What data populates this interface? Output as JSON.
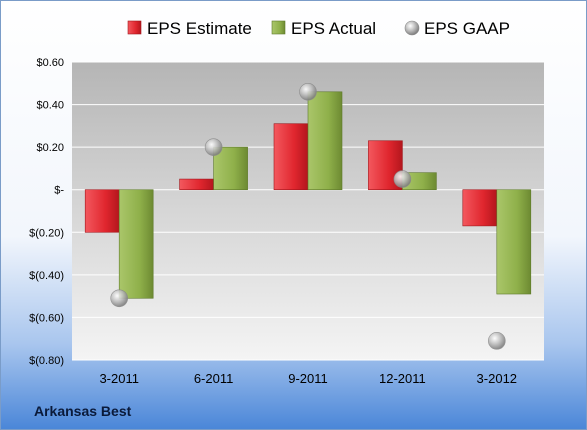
{
  "chart_data": {
    "type": "bar",
    "categories": [
      "3-2011",
      "6-2011",
      "9-2011",
      "12-2011",
      "3-2012"
    ],
    "series": [
      {
        "name": "EPS Estimate",
        "kind": "bar",
        "color": "#e0262e",
        "values": [
          -0.2,
          0.05,
          0.31,
          0.23,
          -0.17
        ]
      },
      {
        "name": "EPS Actual",
        "kind": "bar",
        "color": "#8fb04a",
        "values": [
          -0.51,
          0.2,
          0.46,
          0.08,
          -0.49
        ]
      },
      {
        "name": "EPS GAAP",
        "kind": "marker",
        "color": "#b8b8b8",
        "values": [
          -0.51,
          0.2,
          0.46,
          0.05,
          -0.71
        ]
      }
    ],
    "ylim": [
      -0.8,
      0.6
    ],
    "yticks": [
      0.6,
      0.4,
      0.2,
      0,
      -0.2,
      -0.4,
      -0.6,
      -0.8
    ],
    "ytick_labels": [
      "$0.60",
      "$0.40",
      "$0.20",
      "$-",
      "$(0.20)",
      "$(0.40)",
      "$(0.60)",
      "$(0.80)"
    ],
    "legend_position": "top",
    "grid": true
  },
  "company": "Arkansas Best",
  "colors": {
    "accent": "#4a90e2"
  }
}
